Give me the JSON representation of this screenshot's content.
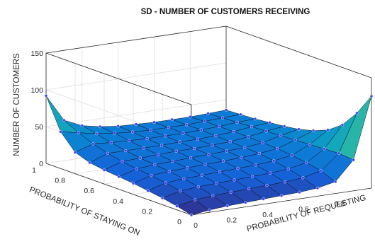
{
  "chart_data": {
    "type": "surface",
    "title": "SD - NUMBER OF CUSTOMERS RECEIVING",
    "xlabel": "PROBABILITY OF REQUESTING",
    "ylabel": "PROBABILITY OF STAYING ON",
    "zlabel": "NUMBER OF CUSTOMERS",
    "xlim": [
      0,
      1
    ],
    "ylim": [
      0,
      1
    ],
    "zlim": [
      0,
      150
    ],
    "x_ticks": [
      "0",
      "0.2",
      "0.4",
      "0.6",
      "0.8"
    ],
    "y_ticks": [
      "0",
      "0.2",
      "0.4",
      "0.6",
      "0.8",
      "1"
    ],
    "z_ticks": [
      "0",
      "50",
      "100",
      "150"
    ],
    "grid": true,
    "colormap": "parula",
    "x_values": [
      0,
      0.1,
      0.2,
      0.3,
      0.4,
      0.5,
      0.6,
      0.7,
      0.8,
      0.9,
      1
    ],
    "y_values": [
      0,
      0.1,
      0.2,
      0.3,
      0.4,
      0.5,
      0.6,
      0.7,
      0.8,
      0.9,
      1
    ],
    "z_grid": [
      [
        0,
        3,
        5,
        6,
        7,
        8,
        9,
        11,
        16,
        42,
        125
      ],
      [
        5,
        10,
        12,
        13,
        14,
        15,
        16,
        18,
        24,
        44,
        95
      ],
      [
        9,
        15,
        17,
        18,
        19,
        20,
        21,
        23,
        28,
        43,
        72
      ],
      [
        12,
        19,
        21,
        22,
        23,
        24,
        25,
        27,
        31,
        42,
        58
      ],
      [
        15,
        22,
        24,
        25,
        26,
        27,
        28,
        30,
        33,
        41,
        50
      ],
      [
        17,
        24,
        26,
        27,
        28,
        29,
        30,
        31,
        34,
        40,
        45
      ],
      [
        19,
        27,
        28,
        29,
        30,
        30,
        31,
        32,
        35,
        39,
        42
      ],
      [
        22,
        31,
        31,
        31,
        31,
        32,
        32,
        33,
        35,
        38,
        40
      ],
      [
        29,
        37,
        35,
        34,
        33,
        33,
        33,
        34,
        35,
        37,
        38
      ],
      [
        50,
        45,
        40,
        37,
        35,
        34,
        34,
        34,
        35,
        36,
        37
      ],
      [
        92,
        55,
        44,
        39,
        36,
        35,
        34,
        34,
        34,
        35,
        36
      ]
    ],
    "marker_color": "#3a43ff"
  }
}
